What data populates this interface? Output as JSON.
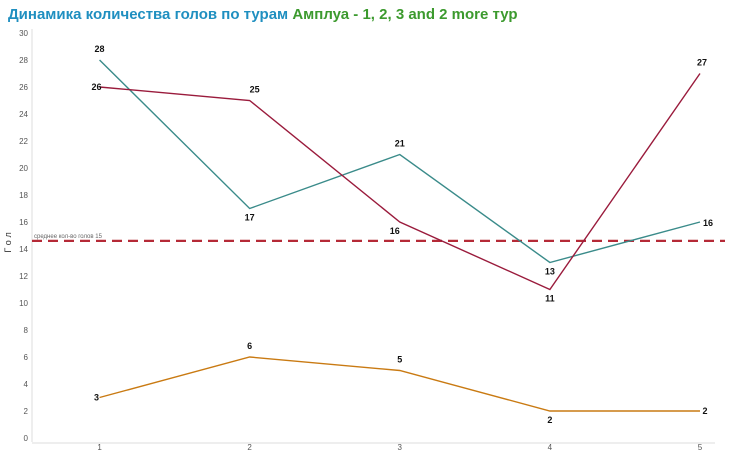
{
  "title": {
    "part1": "Динамика количества голов по турам",
    "part2": "Амплуа - 1, 2, 3 and 2 more тур"
  },
  "chart_data": {
    "type": "line",
    "x": [
      1,
      2,
      3,
      4,
      5
    ],
    "xlim": [
      0.55,
      5.1
    ],
    "ylim": [
      0,
      30
    ],
    "yticks": [
      0,
      2,
      4,
      6,
      8,
      10,
      12,
      14,
      16,
      18,
      20,
      22,
      24,
      26,
      28,
      30
    ],
    "xlabel": "",
    "ylabel": "Гол",
    "grid": false,
    "series": [
      {
        "values": [
          28,
          17,
          21,
          13,
          16
        ],
        "color": "#3a8b8a"
      },
      {
        "values": [
          26,
          25,
          16,
          11,
          27
        ],
        "color": "#9a1b3c"
      },
      {
        "values": [
          3,
          6,
          5,
          2,
          2
        ],
        "color": "#c97a12"
      }
    ],
    "reference_line": {
      "value": 14.6,
      "label": "среднее кол-во голов 15",
      "color": "#b52a37",
      "style": "dashed"
    }
  }
}
